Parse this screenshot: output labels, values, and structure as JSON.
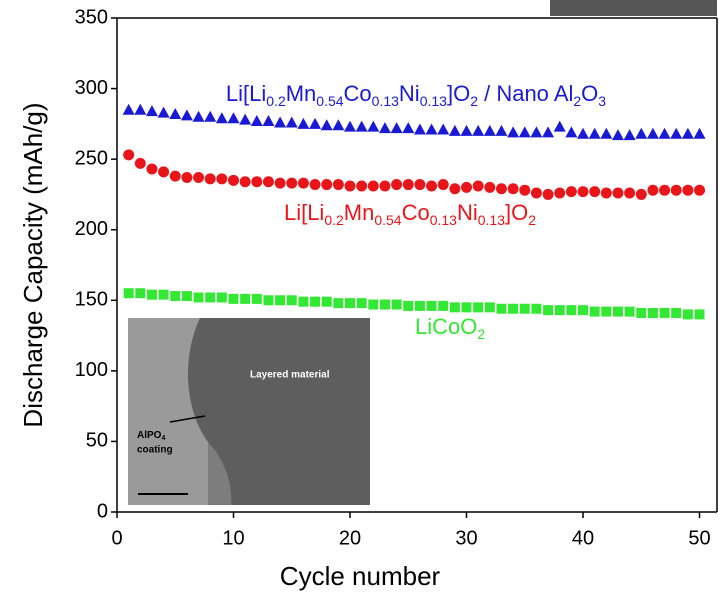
{
  "chart_data": {
    "type": "scatter",
    "x_label": "Cycle number",
    "y_label": "Discharge Capacity (mAh/g)",
    "xlim": [
      0,
      51.5
    ],
    "ylim": [
      0,
      350
    ],
    "xticks": [
      0,
      10,
      20,
      30,
      40,
      50
    ],
    "yticks": [
      0,
      50,
      100,
      150,
      200,
      250,
      300,
      350
    ],
    "x": [
      1,
      2,
      3,
      4,
      5,
      6,
      7,
      8,
      9,
      10,
      11,
      12,
      13,
      14,
      15,
      16,
      17,
      18,
      19,
      20,
      21,
      22,
      23,
      24,
      25,
      26,
      27,
      28,
      29,
      30,
      31,
      32,
      33,
      34,
      35,
      36,
      37,
      38,
      39,
      40,
      41,
      42,
      43,
      44,
      45,
      46,
      47,
      48,
      49,
      50
    ],
    "series": [
      {
        "marker": "triangle",
        "color": "#1a1ad6",
        "values": [
          285,
          285,
          284,
          283,
          282,
          281,
          280,
          280,
          279,
          279,
          278,
          277,
          277,
          276,
          276,
          275,
          275,
          274,
          274,
          273,
          273,
          273,
          272,
          272,
          272,
          271,
          271,
          271,
          270,
          270,
          270,
          270,
          270,
          269,
          269,
          269,
          269,
          273,
          269,
          268,
          268,
          268,
          267,
          267,
          268,
          268,
          268,
          268,
          268,
          268
        ]
      },
      {
        "marker": "circle",
        "color": "#e8161b",
        "values": [
          253,
          247,
          243,
          241,
          238,
          237,
          237,
          236,
          236,
          235,
          234,
          234,
          234,
          233,
          233,
          233,
          232,
          232,
          232,
          231,
          231,
          231,
          231,
          232,
          232,
          232,
          231,
          232,
          229,
          230,
          231,
          230,
          229,
          229,
          228,
          226,
          225,
          226,
          227,
          227,
          227,
          226,
          226,
          226,
          225,
          228,
          228,
          228,
          228,
          228
        ]
      },
      {
        "marker": "square",
        "color": "#33e833",
        "values": [
          155,
          155,
          154,
          154,
          153,
          153,
          152,
          152,
          152,
          151,
          151,
          151,
          150,
          150,
          150,
          149,
          149,
          149,
          148,
          148,
          148,
          147,
          147,
          147,
          146,
          146,
          146,
          146,
          145,
          145,
          145,
          145,
          144,
          144,
          144,
          144,
          143,
          143,
          143,
          143,
          142,
          142,
          142,
          142,
          141,
          141,
          141,
          141,
          140,
          140
        ]
      }
    ],
    "annotations": [
      {
        "color": "#1a1ad6",
        "parts": [
          {
            "text": "Li[Li"
          },
          {
            "sub": "0.2"
          },
          {
            "text": "Mn"
          },
          {
            "sub": "0.54"
          },
          {
            "text": "Co"
          },
          {
            "sub": "0.13"
          },
          {
            "text": "Ni"
          },
          {
            "sub": "0.13"
          },
          {
            "text": "]O"
          },
          {
            "sub": "2"
          },
          {
            "text": " / Nano Al"
          },
          {
            "sub": "2"
          },
          {
            "text": "O"
          },
          {
            "sub": "3"
          }
        ]
      },
      {
        "color": "#e8161b",
        "parts": [
          {
            "text": "Li[Li"
          },
          {
            "sub": "0.2"
          },
          {
            "text": "Mn"
          },
          {
            "sub": "0.54"
          },
          {
            "text": "Co"
          },
          {
            "sub": "0.13"
          },
          {
            "text": "Ni"
          },
          {
            "sub": "0.13"
          },
          {
            "text": "]O"
          },
          {
            "sub": "2"
          }
        ]
      },
      {
        "color": "#33e833",
        "parts": [
          {
            "text": "LiCoO"
          },
          {
            "sub": "2"
          }
        ]
      }
    ],
    "inset": {
      "label": "Layered material",
      "coating": [
        {
          "text": "AlPO"
        },
        {
          "sub": "4"
        },
        {
          "text": "coating"
        }
      ]
    }
  }
}
